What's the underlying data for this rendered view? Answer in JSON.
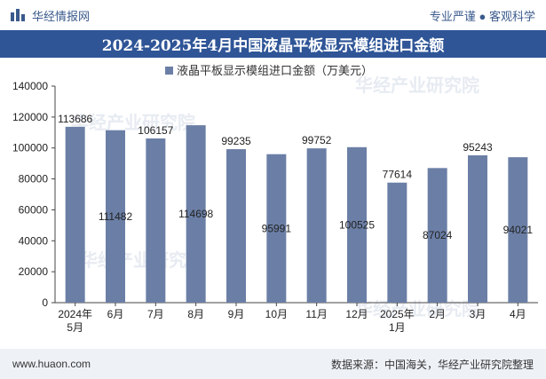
{
  "header": {
    "brand": "华经情报网",
    "tagline": "专业严谨 ● 客观科学"
  },
  "title": "2024-2025年4月中国液晶平板显示模组进口金额",
  "footer": {
    "website": "www.huaon.com",
    "source": "数据来源：中国海关，华经产业研究院整理"
  },
  "watermark": "华经产业研究院",
  "colors": {
    "bar": "#6b7fa6",
    "title_bg": "#2f5597",
    "brand": "#3a5a8c"
  },
  "chart_data": {
    "type": "bar",
    "title": "2024-2025年4月中国液晶平板显示模组进口金额",
    "legend": "液晶平板显示模组进口金额（万美元）",
    "legend_position": "top-center",
    "categories": [
      [
        "2024年",
        "5月"
      ],
      [
        "6月"
      ],
      [
        "7月"
      ],
      [
        "8月"
      ],
      [
        "9月"
      ],
      [
        "10月"
      ],
      [
        "11月"
      ],
      [
        "12月"
      ],
      [
        "2025年",
        "1月"
      ],
      [
        "2月"
      ],
      [
        "3月"
      ],
      [
        "4月"
      ]
    ],
    "values": [
      113686,
      111482,
      106157,
      114698,
      99235,
      95991,
      99752,
      100525,
      77614,
      87024,
      95243,
      94021
    ],
    "label_position": [
      "top",
      "mid",
      "top",
      "mid",
      "top",
      "mid",
      "top",
      "mid",
      "top",
      "mid",
      "top",
      "mid"
    ],
    "ylim": [
      0,
      140000
    ],
    "yticks": [
      0,
      20000,
      40000,
      60000,
      80000,
      100000,
      120000,
      140000
    ],
    "xlabel": "",
    "ylabel": ""
  }
}
